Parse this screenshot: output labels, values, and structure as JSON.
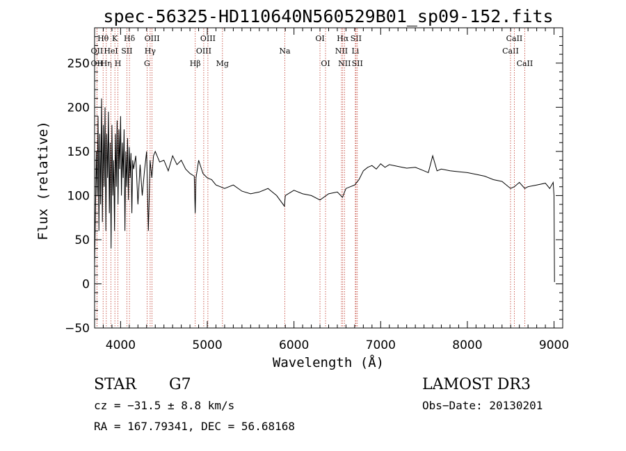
{
  "chart_data": {
    "type": "line",
    "title": "spec-56325-HD110640N560529B01_sp09-152.fits",
    "xlabel": "Wavelength (Å)",
    "ylabel": "Flux (relative)",
    "xlim": [
      3700,
      9100
    ],
    "ylim": [
      -50,
      290
    ],
    "xticks": [
      4000,
      5000,
      6000,
      7000,
      8000,
      9000
    ],
    "yticks": [
      -50,
      0,
      50,
      100,
      150,
      200,
      250
    ],
    "series": [
      {
        "name": "flux",
        "x": [
          3700,
          3710,
          3720,
          3730,
          3740,
          3750,
          3760,
          3770,
          3780,
          3790,
          3800,
          3810,
          3820,
          3830,
          3840,
          3850,
          3860,
          3870,
          3880,
          3890,
          3900,
          3910,
          3920,
          3930,
          3940,
          3950,
          3960,
          3970,
          3980,
          3990,
          4000,
          4010,
          4020,
          4030,
          4040,
          4050,
          4060,
          4070,
          4080,
          4090,
          4100,
          4110,
          4120,
          4130,
          4140,
          4150,
          4175,
          4200,
          4225,
          4250,
          4275,
          4300,
          4320,
          4340,
          4360,
          4380,
          4400,
          4450,
          4500,
          4550,
          4600,
          4650,
          4700,
          4750,
          4800,
          4850,
          4860,
          4870,
          4900,
          4950,
          5000,
          5050,
          5100,
          5150,
          5200,
          5300,
          5400,
          5500,
          5600,
          5700,
          5800,
          5890,
          5900,
          6000,
          6100,
          6200,
          6300,
          6400,
          6500,
          6560,
          6600,
          6650,
          6700,
          6750,
          6800,
          6850,
          6900,
          6950,
          7000,
          7050,
          7100,
          7200,
          7300,
          7400,
          7500,
          7550,
          7600,
          7650,
          7700,
          7800,
          7900,
          8000,
          8100,
          8200,
          8300,
          8400,
          8498,
          8542,
          8600,
          8662,
          8700,
          8800,
          8900,
          8950,
          8990,
          9000,
          9005
        ],
        "values": [
          20,
          80,
          150,
          100,
          190,
          60,
          170,
          90,
          210,
          70,
          180,
          110,
          200,
          60,
          170,
          120,
          195,
          80,
          160,
          40,
          180,
          100,
          140,
          60,
          170,
          110,
          185,
          90,
          175,
          130,
          190,
          100,
          160,
          120,
          175,
          60,
          150,
          110,
          165,
          95,
          155,
          120,
          148,
          80,
          140,
          130,
          145,
          90,
          135,
          100,
          128,
          150,
          60,
          140,
          120,
          145,
          150,
          138,
          140,
          128,
          145,
          135,
          140,
          130,
          125,
          122,
          80,
          120,
          140,
          125,
          120,
          118,
          112,
          110,
          108,
          112,
          105,
          102,
          104,
          108,
          100,
          88,
          100,
          106,
          102,
          100,
          95,
          102,
          104,
          98,
          108,
          110,
          112,
          118,
          128,
          132,
          134,
          130,
          136,
          132,
          135,
          133,
          131,
          132,
          128,
          126,
          145,
          128,
          130,
          128,
          127,
          126,
          124,
          122,
          118,
          116,
          108,
          110,
          115,
          108,
          110,
          112,
          114,
          108,
          115,
          100,
          2
        ]
      }
    ],
    "lines": [
      {
        "name": "OII",
        "wl": 3727,
        "row": 2
      },
      {
        "name": "OII",
        "wl": 3727,
        "row": 3
      },
      {
        "name": "Hθ",
        "wl": 3798,
        "row": 1
      },
      {
        "name": "Hη",
        "wl": 3835,
        "row": 3
      },
      {
        "name": "HeI",
        "wl": 3889,
        "row": 2
      },
      {
        "name": "K",
        "wl": 3934,
        "row": 1
      },
      {
        "name": "H",
        "wl": 3969,
        "row": 3
      },
      {
        "name": "SII",
        "wl": 4072,
        "row": 2
      },
      {
        "name": "Hδ",
        "wl": 4102,
        "row": 1
      },
      {
        "name": "G",
        "wl": 4305,
        "row": 3
      },
      {
        "name": "Hγ",
        "wl": 4341,
        "row": 2
      },
      {
        "name": "OIII",
        "wl": 4363,
        "row": 1
      },
      {
        "name": "Hβ",
        "wl": 4861,
        "row": 3
      },
      {
        "name": "OIII",
        "wl": 4959,
        "row": 2
      },
      {
        "name": "OIII",
        "wl": 5007,
        "row": 1
      },
      {
        "name": "Mg",
        "wl": 5175,
        "row": 3
      },
      {
        "name": "Na",
        "wl": 5894,
        "row": 2
      },
      {
        "name": "OI",
        "wl": 6300,
        "row": 1
      },
      {
        "name": "OI",
        "wl": 6364,
        "row": 3
      },
      {
        "name": "NII",
        "wl": 6548,
        "row": 2
      },
      {
        "name": "Hα",
        "wl": 6563,
        "row": 1
      },
      {
        "name": "NII",
        "wl": 6583,
        "row": 3
      },
      {
        "name": "Li",
        "wl": 6708,
        "row": 2
      },
      {
        "name": "SII",
        "wl": 6716,
        "row": 1
      },
      {
        "name": "SII",
        "wl": 6731,
        "row": 3
      },
      {
        "name": "CaII",
        "wl": 8498,
        "row": 2
      },
      {
        "name": "CaII",
        "wl": 8542,
        "row": 1
      },
      {
        "name": "CaII",
        "wl": 8662,
        "row": 3
      }
    ],
    "line_color": "#c0392b",
    "series_color": "#000000"
  },
  "info": {
    "object_class": "STAR",
    "subclass": "G7",
    "survey": "LAMOST DR3",
    "velocity": "cz = −31.5 ± 8.8 km/s",
    "obs_date": "Obs−Date: 20130201",
    "coords": "RA = 167.79341, DEC =  56.68168"
  }
}
